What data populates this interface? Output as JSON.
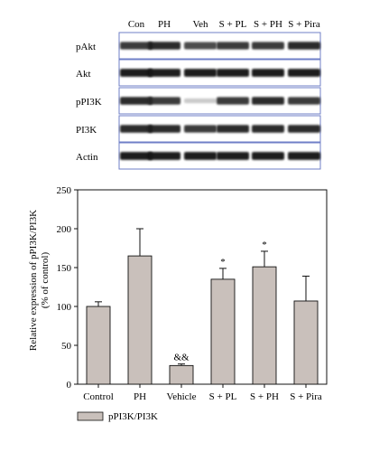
{
  "blot": {
    "lane_headers": [
      "Con",
      "PH",
      "Veh",
      "S + PL",
      "S + PH",
      "S + Pira"
    ],
    "rows": [
      {
        "label": "pAkt",
        "intensity": [
          0.85,
          0.9,
          0.8,
          0.85,
          0.85,
          0.9
        ]
      },
      {
        "label": "Akt",
        "intensity": [
          0.95,
          0.95,
          0.95,
          0.95,
          0.95,
          0.95
        ]
      },
      {
        "label": "pPI3K",
        "intensity": [
          0.9,
          0.85,
          0.25,
          0.85,
          0.9,
          0.85
        ]
      },
      {
        "label": "PI3K",
        "intensity": [
          0.9,
          0.9,
          0.85,
          0.9,
          0.9,
          0.9
        ]
      },
      {
        "label": "Actin",
        "intensity": [
          0.95,
          0.95,
          0.95,
          0.95,
          0.95,
          0.95
        ]
      }
    ],
    "frame_color": "#6f7fc7"
  },
  "chart_data": {
    "type": "bar",
    "categories": [
      "Control",
      "PH",
      "Vehicle",
      "S + PL",
      "S + PH",
      "S + Pira"
    ],
    "series": [
      {
        "name": "pPI3K/PI3K",
        "values": [
          100,
          165,
          24,
          135,
          151,
          107
        ],
        "errors": [
          6,
          35,
          2,
          14,
          20,
          32
        ]
      }
    ],
    "annotations": [
      "",
      "",
      "&&",
      "*",
      "*",
      ""
    ],
    "ylabel_lines": [
      "Relative expression of pPI3K/PI3K",
      "(% of control)"
    ],
    "ylim": [
      0,
      250
    ],
    "yticks": [
      0,
      50,
      100,
      150,
      200,
      250
    ],
    "bar_color": "#c9c0bb",
    "grid": false,
    "legend_position": "bottom-left"
  }
}
